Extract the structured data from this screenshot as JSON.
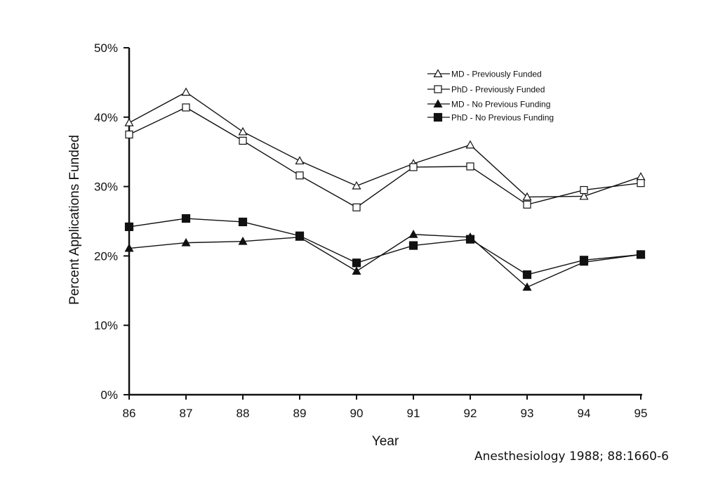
{
  "chart_data": {
    "type": "line",
    "title": "",
    "xlabel": "Year",
    "ylabel": "Percent Applications Funded",
    "categories": [
      "86",
      "87",
      "88",
      "89",
      "90",
      "91",
      "92",
      "93",
      "94",
      "95"
    ],
    "ylim": [
      0,
      50
    ],
    "yticks": [
      0,
      10,
      20,
      30,
      40,
      50
    ],
    "ytick_labels": [
      "0%",
      "10%",
      "20%",
      "30%",
      "40%",
      "50%"
    ],
    "grid": false,
    "legend_position": "top-right",
    "series": [
      {
        "name": "MD - Previously Funded",
        "marker": "open-triangle",
        "values": [
          39.2,
          43.6,
          37.9,
          33.7,
          30.1,
          33.3,
          36.0,
          28.5,
          28.6,
          31.4
        ]
      },
      {
        "name": "PhD - Previously Funded",
        "marker": "open-square",
        "values": [
          37.5,
          41.4,
          36.6,
          31.6,
          27.0,
          32.8,
          32.9,
          27.4,
          29.5,
          30.5
        ]
      },
      {
        "name": "MD - No Previous Funding",
        "marker": "filled-triangle",
        "values": [
          21.1,
          21.9,
          22.1,
          22.7,
          17.8,
          23.1,
          22.7,
          15.5,
          19.1,
          20.2
        ]
      },
      {
        "name": "PhD - No Previous Funding",
        "marker": "filled-square",
        "values": [
          24.2,
          25.4,
          24.9,
          22.9,
          19.0,
          21.5,
          22.4,
          17.3,
          19.4,
          20.2
        ]
      }
    ]
  },
  "citation": "Anesthesiology 1988; 88:1660-6",
  "colors": {
    "line": "#111111",
    "background": "#ffffff"
  }
}
